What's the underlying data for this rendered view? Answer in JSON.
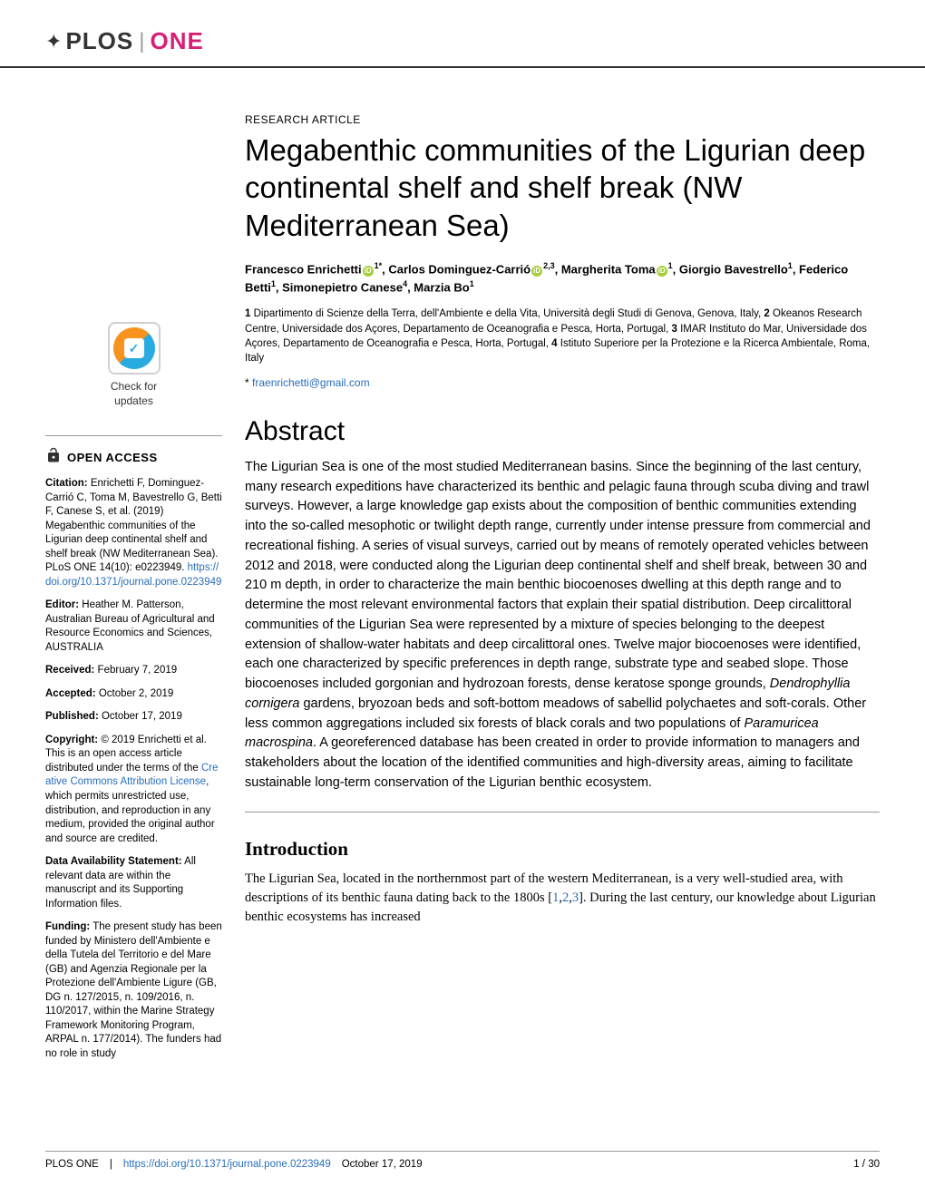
{
  "logo": {
    "plos": "PLOS",
    "one": "ONE"
  },
  "article_type": "RESEARCH ARTICLE",
  "title": "Megabenthic communities of the Ligurian deep continental shelf and shelf break (NW Mediterranean Sea)",
  "authors_html": "Francesco Enrichetti|orcid|1*, Carlos Dominguez-Carrió|orcid|2,3, Margherita Toma|orcid|1, Giorgio Bavestrello|1, Federico Betti|1, Simonepietro Canese|4, Marzia Bo|1",
  "affiliations": [
    {
      "num": "1",
      "text": "Dipartimento di Scienze della Terra, dell'Ambiente e della Vita, Università degli Studi di Genova, Genova, Italy,"
    },
    {
      "num": "2",
      "text": "Okeanos Research Centre, Universidade dos Açores, Departamento de Oceanografia e Pesca, Horta, Portugal,"
    },
    {
      "num": "3",
      "text": "IMAR Instituto do Mar, Universidade dos Açores, Departamento de Oceanografia e Pesca, Horta, Portugal,"
    },
    {
      "num": "4",
      "text": "Istituto Superiore per la Protezione e la Ricerca Ambientale, Roma, Italy"
    }
  ],
  "corresponding_email": "fraenrichetti@gmail.com",
  "abstract_heading": "Abstract",
  "abstract": "The Ligurian Sea is one of the most studied Mediterranean basins. Since the beginning of the last century, many research expeditions have characterized its benthic and pelagic fauna through scuba diving and trawl surveys. However, a large knowledge gap exists about the composition of benthic communities extending into the so-called mesophotic or twilight depth range, currently under intense pressure from commercial and recreational fishing. A series of visual surveys, carried out by means of remotely operated vehicles between 2012 and 2018, were conducted along the Ligurian deep continental shelf and shelf break, between 30 and 210 m depth, in order to characterize the main benthic biocoenoses dwelling at this depth range and to determine the most relevant environmental factors that explain their spatial distribution. Deep circalittoral communities of the Ligurian Sea were represented by a mixture of species belonging to the deepest extension of shallow-water habitats and deep circalittoral ones. Twelve major biocoenoses were identified, each one characterized by specific preferences in depth range, substrate type and seabed slope. Those biocoenoses included gorgonian and hydrozoan forests, dense keratose sponge grounds, <em>Dendrophyllia cornigera</em> gardens, bryozoan beds and soft-bottom meadows of sabellid polychaetes and soft-corals. Other less common aggregations included six forests of black corals and two populations of <em>Paramuricea macrospina</em>. A georeferenced database has been created in order to provide information to managers and stakeholders about the location of the identified communities and high-diversity areas, aiming to facilitate sustainable long-term conservation of the Ligurian benthic ecosystem.",
  "intro_heading": "Introduction",
  "intro_text": "The Ligurian Sea, located in the northernmost part of the western Mediterranean, is a very well-studied area, with descriptions of its benthic fauna dating back to the 1800s [<a class='ref-link' href='#'>1</a>,<a class='ref-link' href='#'>2</a>,<a class='ref-link' href='#'>3</a>]. During the last century, our knowledge about Ligurian benthic ecosystems has increased",
  "sidebar": {
    "check_updates": "Check for\nupdates",
    "open_access": "OPEN ACCESS",
    "citation_label": "Citation:",
    "citation": "Enrichetti F, Dominguez-Carrió C, Toma M, Bavestrello G, Betti F, Canese S, et al. (2019) Megabenthic communities of the Ligurian deep continental shelf and shelf break (NW Mediterranean Sea). PLoS ONE 14(10): e0223949.",
    "doi": "https://doi.org/10.1371/journal.pone.0223949",
    "editor_label": "Editor:",
    "editor": "Heather M. Patterson, Australian Bureau of Agricultural and Resource Economics and Sciences, AUSTRALIA",
    "received_label": "Received:",
    "received": "February 7, 2019",
    "accepted_label": "Accepted:",
    "accepted": "October 2, 2019",
    "published_label": "Published:",
    "published": "October 17, 2019",
    "copyright_label": "Copyright:",
    "copyright_pre": "© 2019 Enrichetti et al. This is an open access article distributed under the terms of the",
    "cc_link": "Creative Commons Attribution License",
    "copyright_post": ", which permits unrestricted use, distribution, and reproduction in any medium, provided the original author and source are credited.",
    "data_label": "Data Availability Statement:",
    "data_statement": "All relevant data are within the manuscript and its Supporting Information files.",
    "funding_label": "Funding:",
    "funding": "The present study has been funded by Ministero dell'Ambiente e della Tutela del Territorio e del Mare (GB) and Agenzia Regionale per la Protezione dell'Ambiente Ligure (GB, DG n. 127/2015, n. 109/2016, n. 110/2017, within the Marine Strategy Framework Monitoring Program, ARPAL n. 177/2014). The funders had no role in study"
  },
  "footer": {
    "journal": "PLOS ONE",
    "doi": "https://doi.org/10.1371/journal.pone.0223949",
    "date": "October 17, 2019",
    "page": "1 / 30"
  }
}
